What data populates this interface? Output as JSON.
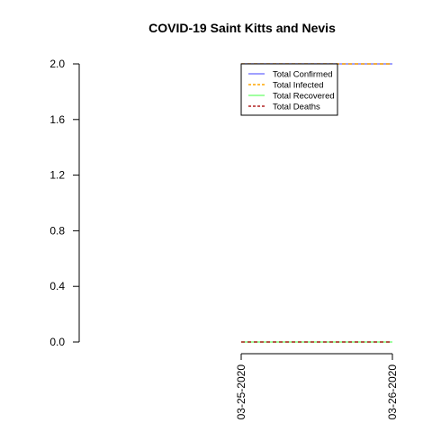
{
  "chart_data": {
    "type": "line",
    "title": "COVID-19 Saint Kitts and Nevis",
    "xlabel": "",
    "ylabel": "",
    "x": [
      "03-25-2020",
      "03-26-2020"
    ],
    "ylim": [
      0,
      2
    ],
    "yticks": [
      "0.0",
      "0.4",
      "0.8",
      "1.2",
      "1.6",
      "2.0"
    ],
    "grid": false,
    "legend_position": "top-right",
    "series": [
      {
        "name": "Total Confirmed",
        "values": [
          2,
          2
        ],
        "color": "#8080ff",
        "dash": "solid"
      },
      {
        "name": "Total Infected",
        "values": [
          2,
          2
        ],
        "color": "#ffa500",
        "dash": "dashed"
      },
      {
        "name": "Total Recovered",
        "values": [
          0,
          0
        ],
        "color": "#80ff80",
        "dash": "solid"
      },
      {
        "name": "Total Deaths",
        "values": [
          0,
          0
        ],
        "color": "#b22222",
        "dash": "dashed"
      }
    ]
  }
}
